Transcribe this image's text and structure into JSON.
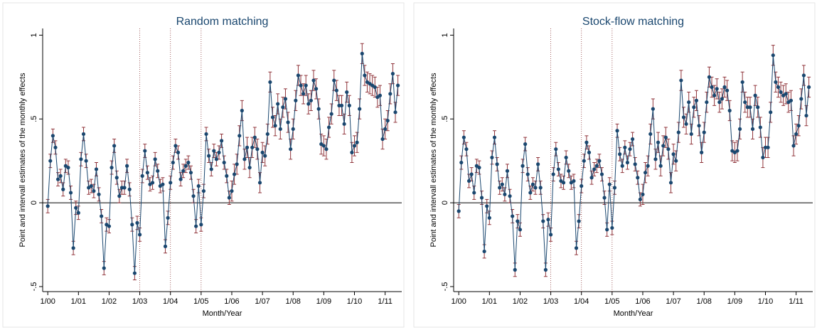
{
  "chart_data": [
    {
      "type": "line",
      "title": "Random matching",
      "x_label": "Month/Year",
      "y_label": "Point and intervall estimates of the monthly effects",
      "categories": [
        "1/00",
        null,
        null,
        null,
        null,
        null,
        null,
        null,
        null,
        null,
        null,
        null,
        "1/01",
        null,
        null,
        null,
        null,
        null,
        null,
        null,
        null,
        null,
        null,
        null,
        "1/02",
        null,
        null,
        null,
        null,
        null,
        null,
        null,
        null,
        null,
        null,
        null,
        "1/03",
        null,
        null,
        null,
        null,
        null,
        null,
        null,
        null,
        null,
        null,
        null,
        "1/04",
        null,
        null,
        null,
        null,
        null,
        null,
        null,
        null,
        null,
        null,
        null,
        "1/05",
        null,
        null,
        null,
        null,
        null,
        null,
        null,
        null,
        null,
        null,
        null,
        "1/06",
        null,
        null,
        null,
        null,
        null,
        null,
        null,
        null,
        null,
        null,
        null,
        "1/07",
        null,
        null,
        null,
        null,
        null,
        null,
        null,
        null,
        null,
        null,
        null,
        "1/08",
        null,
        null,
        null,
        null,
        null,
        null,
        null,
        null,
        null,
        null,
        null,
        "1/09",
        null,
        null,
        null,
        null,
        null,
        null,
        null,
        null,
        null,
        null,
        null,
        "1/10",
        null,
        null,
        null,
        null,
        null,
        null,
        null,
        null,
        null,
        null,
        null,
        "1/11",
        null,
        null,
        null,
        null,
        null
      ],
      "values": [
        -0.02,
        0.25,
        0.4,
        0.33,
        0.14,
        0.16,
        0.08,
        0.22,
        0.21,
        0.06,
        -0.27,
        -0.03,
        -0.06,
        0.26,
        0.41,
        0.25,
        0.09,
        0.1,
        0.07,
        0.2,
        0.05,
        -0.08,
        -0.39,
        -0.13,
        -0.14,
        0.21,
        0.34,
        0.15,
        0.04,
        0.09,
        0.09,
        0.22,
        0.08,
        -0.13,
        -0.42,
        -0.12,
        -0.19,
        0.16,
        0.31,
        0.18,
        0.11,
        0.12,
        0.26,
        0.19,
        0.1,
        0.11,
        -0.26,
        -0.09,
        0.12,
        0.24,
        0.34,
        0.3,
        0.14,
        0.19,
        0.22,
        0.24,
        0.18,
        0.04,
        -0.14,
        0.1,
        -0.13,
        0.07,
        0.41,
        0.28,
        0.2,
        0.31,
        0.26,
        0.3,
        0.37,
        0.24,
        0.16,
        0.03,
        0.07,
        0.17,
        0.23,
        0.4,
        0.55,
        0.26,
        0.33,
        0.21,
        0.33,
        0.39,
        0.32,
        0.12,
        0.3,
        0.28,
        0.41,
        0.72,
        0.51,
        0.46,
        0.59,
        0.44,
        0.57,
        0.62,
        0.48,
        0.32,
        0.44,
        0.61,
        0.76,
        0.7,
        0.65,
        0.7,
        0.59,
        0.61,
        0.73,
        0.68,
        0.56,
        0.35,
        0.34,
        0.32,
        0.45,
        0.53,
        0.73,
        0.67,
        0.58,
        0.58,
        0.47,
        0.66,
        0.58,
        0.3,
        0.34,
        0.36,
        0.56,
        0.89,
        0.76,
        0.72,
        0.71,
        0.7,
        0.69,
        0.63,
        0.64,
        0.38,
        0.44,
        0.49,
        0.65,
        0.77,
        0.54,
        0.7
      ],
      "errors": [
        0.04,
        0.04,
        0.04,
        0.04,
        0.04,
        0.04,
        0.04,
        0.04,
        0.04,
        0.04,
        0.04,
        0.04,
        0.04,
        0.04,
        0.04,
        0.04,
        0.04,
        0.04,
        0.04,
        0.04,
        0.04,
        0.04,
        0.04,
        0.04,
        0.04,
        0.04,
        0.04,
        0.04,
        0.04,
        0.04,
        0.04,
        0.04,
        0.04,
        0.04,
        0.04,
        0.04,
        0.04,
        0.04,
        0.04,
        0.04,
        0.04,
        0.04,
        0.04,
        0.04,
        0.04,
        0.04,
        0.04,
        0.04,
        0.04,
        0.04,
        0.04,
        0.04,
        0.04,
        0.04,
        0.04,
        0.04,
        0.04,
        0.04,
        0.04,
        0.04,
        0.04,
        0.04,
        0.04,
        0.04,
        0.04,
        0.04,
        0.04,
        0.04,
        0.04,
        0.04,
        0.04,
        0.04,
        0.06,
        0.06,
        0.06,
        0.06,
        0.06,
        0.06,
        0.06,
        0.06,
        0.06,
        0.06,
        0.06,
        0.06,
        0.06,
        0.06,
        0.06,
        0.06,
        0.06,
        0.06,
        0.06,
        0.06,
        0.06,
        0.06,
        0.06,
        0.06,
        0.06,
        0.06,
        0.06,
        0.06,
        0.06,
        0.06,
        0.06,
        0.06,
        0.06,
        0.06,
        0.06,
        0.06,
        0.06,
        0.06,
        0.06,
        0.06,
        0.06,
        0.06,
        0.06,
        0.06,
        0.06,
        0.06,
        0.06,
        0.06,
        0.06,
        0.06,
        0.06,
        0.06,
        0.06,
        0.06,
        0.06,
        0.06,
        0.06,
        0.06,
        0.06,
        0.06,
        0.06,
        0.06,
        0.06,
        0.06,
        0.06,
        0.06
      ],
      "color": "#1a476f",
      "error_color": "#90353b",
      "ylim": [
        -0.53,
        1.04
      ],
      "yticks": [
        {
          "value": -0.5,
          "label": "-.5"
        },
        0,
        {
          "value": 0.5,
          "label": ".5"
        },
        1
      ],
      "hline": 0,
      "vlines": [
        "1/03",
        "1/04",
        "1/05"
      ]
    },
    {
      "type": "line",
      "title": "Stock-flow matching",
      "x_label": "Month/Year",
      "y_label": "Point and intervall estimates of the monthly effects",
      "categories": [
        "1/00",
        null,
        null,
        null,
        null,
        null,
        null,
        null,
        null,
        null,
        null,
        null,
        "1/01",
        null,
        null,
        null,
        null,
        null,
        null,
        null,
        null,
        null,
        null,
        null,
        "1/02",
        null,
        null,
        null,
        null,
        null,
        null,
        null,
        null,
        null,
        null,
        null,
        "1/03",
        null,
        null,
        null,
        null,
        null,
        null,
        null,
        null,
        null,
        null,
        null,
        "1/04",
        null,
        null,
        null,
        null,
        null,
        null,
        null,
        null,
        null,
        null,
        null,
        "1/05",
        null,
        null,
        null,
        null,
        null,
        null,
        null,
        null,
        null,
        null,
        null,
        "1/06",
        null,
        null,
        null,
        null,
        null,
        null,
        null,
        null,
        null,
        null,
        null,
        "1/07",
        null,
        null,
        null,
        null,
        null,
        null,
        null,
        null,
        null,
        null,
        null,
        "1/08",
        null,
        null,
        null,
        null,
        null,
        null,
        null,
        null,
        null,
        null,
        null,
        "1/09",
        null,
        null,
        null,
        null,
        null,
        null,
        null,
        null,
        null,
        null,
        null,
        "1/10",
        null,
        null,
        null,
        null,
        null,
        null,
        null,
        null,
        null,
        null,
        null,
        "1/11",
        null,
        null,
        null,
        null,
        null
      ],
      "values": [
        -0.05,
        0.24,
        0.39,
        0.32,
        0.13,
        0.17,
        0.06,
        0.22,
        0.21,
        0.03,
        -0.29,
        -0.02,
        -0.09,
        0.27,
        0.39,
        0.23,
        0.09,
        0.11,
        0.05,
        0.19,
        0.04,
        -0.08,
        -0.4,
        -0.11,
        -0.16,
        0.22,
        0.35,
        0.17,
        0.06,
        0.11,
        0.09,
        0.23,
        0.09,
        -0.11,
        -0.4,
        -0.1,
        -0.19,
        0.17,
        0.32,
        0.2,
        0.13,
        0.12,
        0.27,
        0.19,
        0.12,
        0.13,
        -0.27,
        -0.11,
        0.1,
        0.25,
        0.36,
        0.3,
        0.15,
        0.2,
        0.22,
        0.25,
        0.17,
        0.03,
        -0.16,
        0.11,
        -0.15,
        0.09,
        0.43,
        0.29,
        0.22,
        0.33,
        0.24,
        0.32,
        0.38,
        0.23,
        0.15,
        0.02,
        0.05,
        0.18,
        0.22,
        0.41,
        0.56,
        0.26,
        0.36,
        0.22,
        0.34,
        0.39,
        0.32,
        0.12,
        0.29,
        0.25,
        0.42,
        0.73,
        0.51,
        0.47,
        0.6,
        0.41,
        0.57,
        0.61,
        0.46,
        0.3,
        0.42,
        0.6,
        0.75,
        0.69,
        0.64,
        0.68,
        0.6,
        0.62,
        0.69,
        0.67,
        0.55,
        0.31,
        0.3,
        0.31,
        0.44,
        0.72,
        0.6,
        0.57,
        0.57,
        0.44,
        0.64,
        0.57,
        0.45,
        0.27,
        0.33,
        0.33,
        0.54,
        0.88,
        0.72,
        0.69,
        0.66,
        0.64,
        0.65,
        0.6,
        0.61,
        0.34,
        0.41,
        0.46,
        0.62,
        0.76,
        0.52,
        0.69
      ],
      "errors": [
        0.04,
        0.04,
        0.04,
        0.04,
        0.04,
        0.04,
        0.04,
        0.04,
        0.04,
        0.04,
        0.04,
        0.04,
        0.04,
        0.04,
        0.04,
        0.04,
        0.04,
        0.04,
        0.04,
        0.04,
        0.04,
        0.04,
        0.04,
        0.04,
        0.04,
        0.04,
        0.04,
        0.04,
        0.04,
        0.04,
        0.04,
        0.04,
        0.04,
        0.04,
        0.04,
        0.04,
        0.04,
        0.04,
        0.04,
        0.04,
        0.04,
        0.04,
        0.04,
        0.04,
        0.04,
        0.04,
        0.04,
        0.04,
        0.04,
        0.04,
        0.04,
        0.04,
        0.04,
        0.04,
        0.04,
        0.04,
        0.04,
        0.04,
        0.04,
        0.04,
        0.04,
        0.04,
        0.04,
        0.04,
        0.04,
        0.04,
        0.04,
        0.04,
        0.04,
        0.04,
        0.04,
        0.04,
        0.06,
        0.06,
        0.06,
        0.06,
        0.06,
        0.06,
        0.06,
        0.06,
        0.06,
        0.06,
        0.06,
        0.06,
        0.06,
        0.06,
        0.06,
        0.06,
        0.06,
        0.06,
        0.06,
        0.06,
        0.06,
        0.06,
        0.06,
        0.06,
        0.06,
        0.06,
        0.06,
        0.06,
        0.06,
        0.06,
        0.06,
        0.06,
        0.06,
        0.06,
        0.06,
        0.06,
        0.06,
        0.06,
        0.06,
        0.06,
        0.06,
        0.06,
        0.06,
        0.06,
        0.06,
        0.06,
        0.06,
        0.06,
        0.06,
        0.06,
        0.06,
        0.06,
        0.06,
        0.06,
        0.06,
        0.06,
        0.06,
        0.06,
        0.06,
        0.06,
        0.06,
        0.06,
        0.06,
        0.06,
        0.06,
        0.06
      ],
      "color": "#1a476f",
      "error_color": "#90353b",
      "ylim": [
        -0.53,
        1.04
      ],
      "yticks": [
        {
          "value": -0.5,
          "label": "-.5"
        },
        0,
        {
          "value": 0.5,
          "label": ".5"
        },
        1
      ],
      "hline": 0,
      "vlines": [
        "1/03",
        "1/04",
        "1/05"
      ]
    }
  ]
}
